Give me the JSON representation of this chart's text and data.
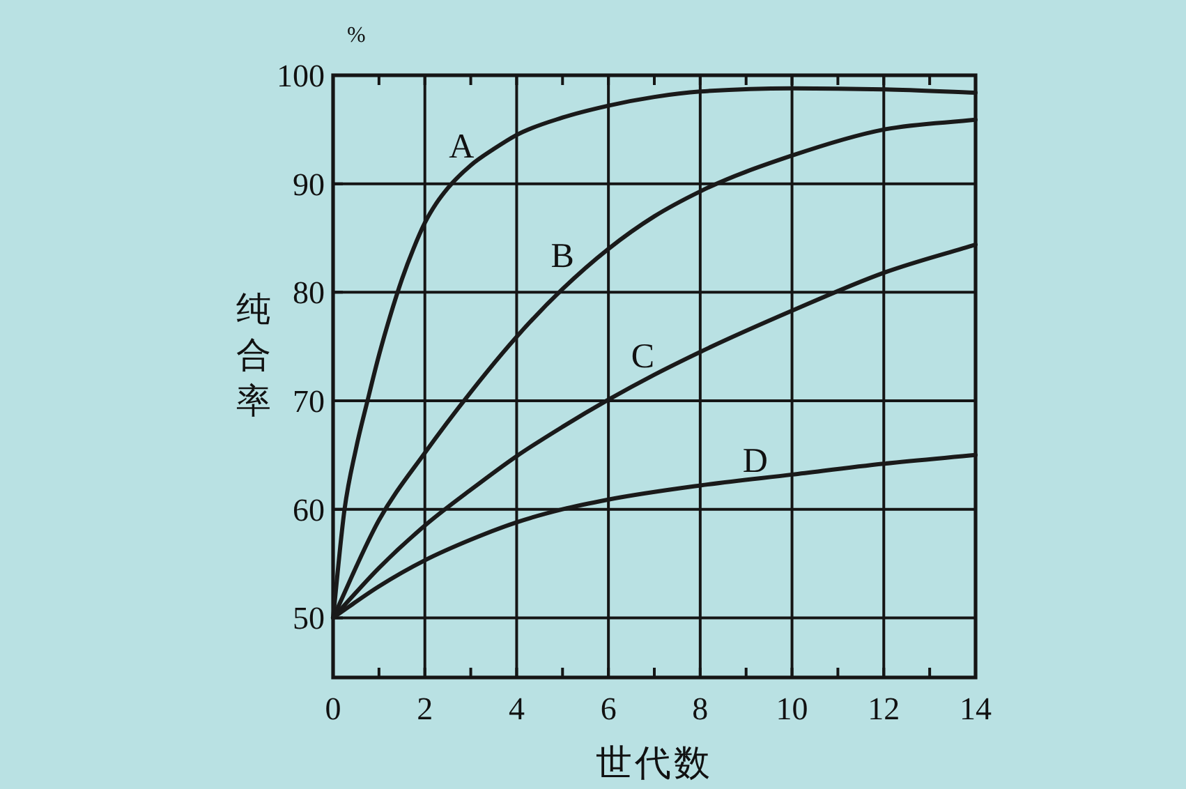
{
  "chart_data": {
    "type": "line",
    "xlabel": "世代数",
    "ylabel": "纯合率",
    "annotations": [
      "%"
    ],
    "series": [
      {
        "name": "A",
        "color": "#1a1a1a",
        "x": [
          0,
          0.25,
          0.5,
          0.75,
          1,
          1.25,
          1.5,
          1.75,
          2,
          2.25,
          2.5,
          3,
          3.5,
          4,
          5,
          6,
          7,
          8,
          10,
          12,
          14
        ],
        "values": [
          50,
          60,
          65.6,
          70,
          74.2,
          77.9,
          81.2,
          84,
          86.4,
          88.2,
          89.6,
          91.7,
          93.2,
          94.5,
          96.1,
          97.2,
          98,
          98.5,
          98.8,
          98.7,
          98.4
        ]
      },
      {
        "name": "B",
        "color": "#1a1a1a",
        "x": [
          0,
          1,
          2,
          3,
          4,
          5,
          6,
          7,
          8,
          10,
          12,
          14
        ],
        "values": [
          50,
          59,
          65.2,
          70.8,
          75.9,
          80.3,
          84,
          87,
          89.3,
          92.6,
          95,
          95.9
        ]
      },
      {
        "name": "C",
        "color": "#1a1a1a",
        "x": [
          0,
          1,
          2,
          3,
          4,
          5,
          6,
          7,
          8,
          10,
          12,
          14
        ],
        "values": [
          50,
          54.6,
          58.5,
          61.8,
          64.9,
          67.6,
          70.1,
          72.4,
          74.5,
          78.3,
          81.8,
          84.4
        ]
      },
      {
        "name": "D",
        "color": "#1a1a1a",
        "x": [
          0,
          1,
          2,
          3,
          4,
          5,
          6,
          8,
          10,
          12,
          14
        ],
        "values": [
          50,
          52.9,
          55.3,
          57.2,
          58.8,
          60,
          60.9,
          62.2,
          63.2,
          64.2,
          65
        ]
      }
    ],
    "xlim": [
      0,
      14
    ],
    "ylim": [
      44.5,
      100
    ],
    "xticks": [
      0,
      {
        "value": 1,
        "label": null
      },
      2,
      {
        "value": 3,
        "label": null
      },
      4,
      {
        "value": 5,
        "label": null
      },
      6,
      {
        "value": 7,
        "label": null
      },
      8,
      {
        "value": 9,
        "label": null
      },
      10,
      {
        "value": 11,
        "label": null
      },
      12,
      {
        "value": 13,
        "label": null
      },
      14
    ],
    "yticks": [
      50,
      60,
      70,
      80,
      90,
      100
    ],
    "grid": true,
    "legend": false,
    "marker": "none",
    "line_style": "solid"
  }
}
